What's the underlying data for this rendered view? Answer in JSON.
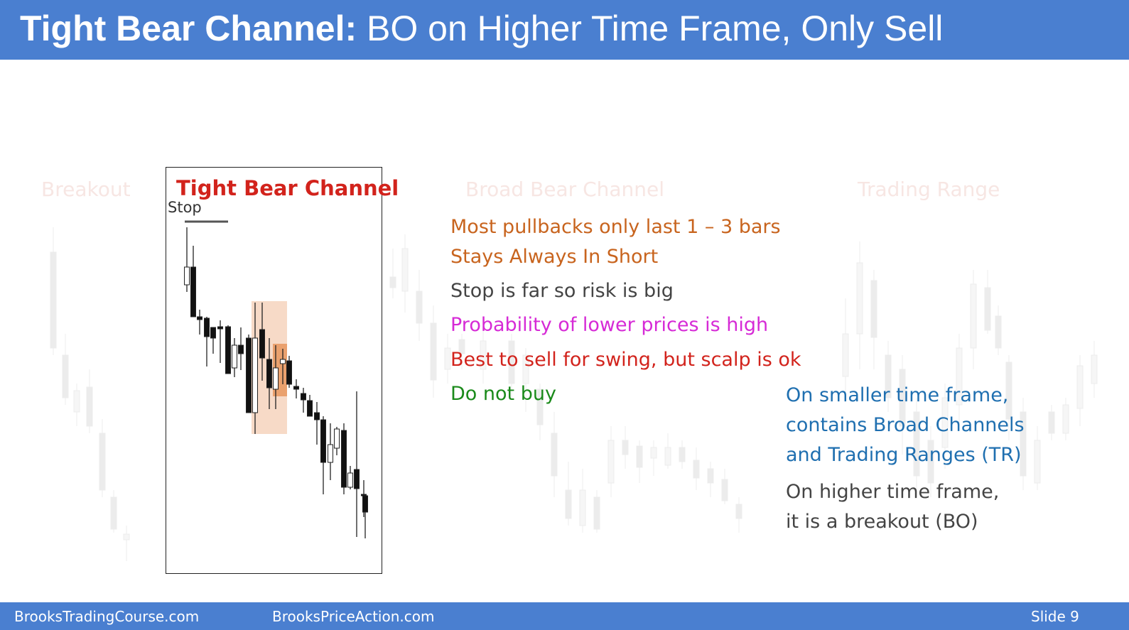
{
  "header": {
    "title_bold": "Tight Bear Channel:",
    "title_rest": "BO on Higher Time Frame, Only Sell"
  },
  "background_labels": [
    "Breakout",
    "Broad Bear Channel",
    "Trading Range"
  ],
  "chart": {
    "title": "Tight Bear Channel",
    "stop_label": "Stop"
  },
  "bullets": [
    {
      "text": "Most pullbacks only last 1 – 3 bars",
      "color": "#c8641e"
    },
    {
      "text": "Stays Always In Short",
      "color": "#c8641e"
    },
    {
      "text": "Stop is far so risk is big",
      "color": "#444444"
    },
    {
      "text": "Probability of lower prices is high",
      "color": "#d62ad6"
    },
    {
      "text": "Best to sell for swing, but scalp is ok",
      "color": "#d2231c"
    },
    {
      "text": "Do not buy",
      "color": "#1a8a1a"
    }
  ],
  "smaller_tf_note": {
    "lines": [
      "On smaller time frame,",
      "contains Broad Channels",
      "and Trading Ranges (TR)"
    ],
    "color": "#1f6fb0"
  },
  "higher_tf_note": {
    "lines": [
      "On higher time frame,",
      "it is a breakout (BO)"
    ],
    "color": "#444444"
  },
  "footer": {
    "left": "BrooksTradingCourse.com",
    "center": "BrooksPriceAction.com",
    "right": "Slide  9"
  }
}
